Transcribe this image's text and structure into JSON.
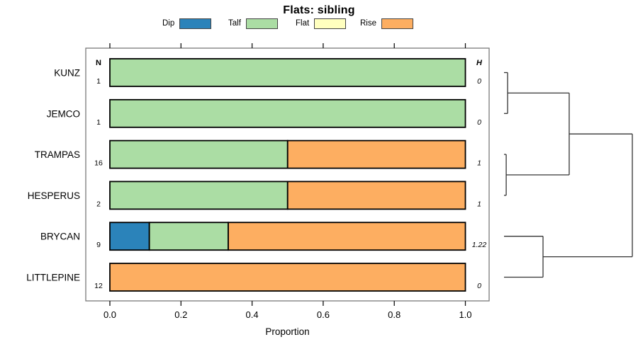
{
  "title": "Flats: sibling",
  "legend": {
    "items": [
      {
        "label": "Dip",
        "color": "#2b83ba"
      },
      {
        "label": "Talf",
        "color": "#abdda4"
      },
      {
        "label": "Flat",
        "color": "#ffffbf"
      },
      {
        "label": "Rise",
        "color": "#fdae61"
      }
    ]
  },
  "columns": {
    "n_header": "N",
    "h_header": "H"
  },
  "axis": {
    "xlabel": "Proportion",
    "ticks": [
      0,
      0.2,
      0.4,
      0.6,
      0.8,
      1.0
    ],
    "tick_labels": [
      "0.0",
      "0.2",
      "0.4",
      "0.6",
      "0.8",
      "1.0"
    ]
  },
  "colors": {
    "frame": "#7a7a7a",
    "tick": "#111111",
    "bar_border": "#000000",
    "dendrogram_line": "#333333",
    "text": "#000000"
  },
  "chart_data": {
    "type": "bar",
    "orientation": "horizontal-stacked",
    "title": "Flats: sibling",
    "xlabel": "Proportion",
    "xlim": [
      0,
      1
    ],
    "grid": false,
    "legend_position": "top",
    "categories": [
      "KUNZ",
      "JEMCO",
      "TRAMPAS",
      "HESPERUS",
      "BRYCAN",
      "LITTLEPINE"
    ],
    "N": [
      "1",
      "1",
      "16",
      "2",
      "9",
      "12"
    ],
    "H": [
      "0",
      "0",
      "1",
      "1",
      "1.22",
      "0"
    ],
    "series": [
      {
        "name": "Dip",
        "color": "#2b83ba",
        "values": [
          0,
          0,
          0,
          0,
          0.111,
          0
        ]
      },
      {
        "name": "Talf",
        "color": "#abdda4",
        "values": [
          1,
          1,
          0.5,
          0.5,
          0.222,
          0
        ]
      },
      {
        "name": "Flat",
        "color": "#ffffbf",
        "values": [
          0,
          0,
          0,
          0,
          0,
          0
        ]
      },
      {
        "name": "Rise",
        "color": "#fdae61",
        "values": [
          0,
          0,
          0.5,
          0.5,
          0.667,
          1
        ]
      }
    ],
    "dendrogram": {
      "leaves": [
        "KUNZ",
        "JEMCO",
        "TRAMPAS",
        "HESPERUS",
        "BRYCAN",
        "LITTLEPINE"
      ],
      "merges": [
        {
          "id": "m1",
          "children": [
            "KUNZ",
            "JEMCO"
          ],
          "height": 0.028
        },
        {
          "id": "m2",
          "children": [
            "TRAMPAS",
            "HESPERUS"
          ],
          "height": 0.017
        },
        {
          "id": "m3",
          "children": [
            "m1",
            "m2"
          ],
          "height": 0.508
        },
        {
          "id": "m4",
          "children": [
            "BRYCAN",
            "LITTLEPINE"
          ],
          "height": 0.304
        },
        {
          "id": "m5",
          "children": [
            "m3",
            "m4"
          ],
          "height": 1.0
        }
      ]
    }
  }
}
